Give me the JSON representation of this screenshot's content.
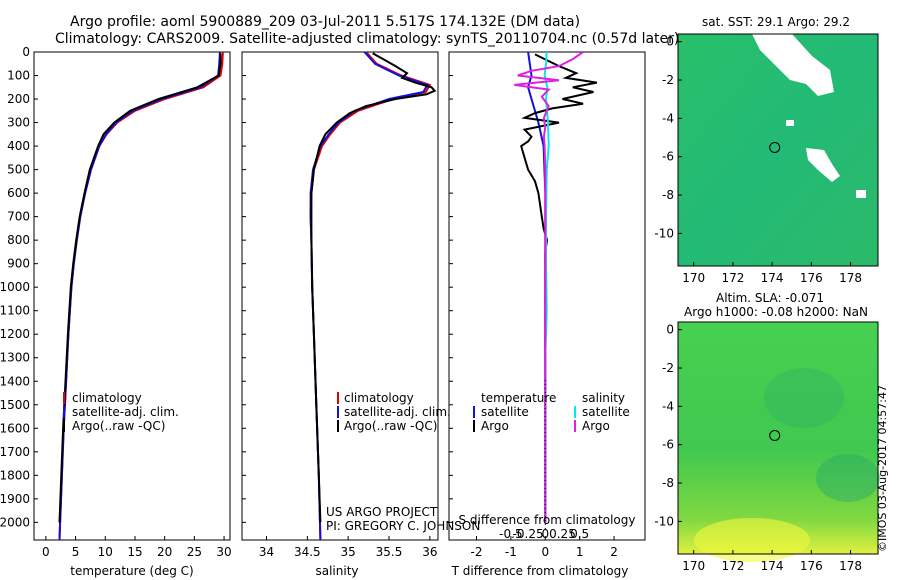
{
  "header": {
    "line1": "Argo profile: aoml 5900889_209 03-Jul-2011 5.517S 174.132E (DM data)",
    "line2": "Climatology: CARS2009. Satellite-adjusted climatology: synTS_20110704.nc (0.57d later)"
  },
  "colors": {
    "climatology": "#e00000",
    "satellite": "#1010e0",
    "argo": "#000000",
    "sal_satellite": "#00e8f0",
    "sal_argo": "#e020e0"
  },
  "stamp": "©IMOS 03-Aug-2017 04:57:47",
  "project": {
    "line1": "US ARGO PROJECT",
    "line2": "PI: GREGORY C. JOHNSON"
  },
  "chart_data": [
    {
      "id": "temperature",
      "type": "line",
      "xlabel": "temperature (deg C)",
      "ylabel": "",
      "xlim": [
        -2,
        31
      ],
      "ylim": [
        2075,
        0
      ],
      "xticks": [
        0,
        5,
        10,
        15,
        20,
        25,
        30
      ],
      "yticks": [
        0,
        100,
        200,
        300,
        400,
        500,
        600,
        700,
        800,
        900,
        1000,
        1100,
        1200,
        1300,
        1400,
        1500,
        1600,
        1700,
        1800,
        1900,
        2000
      ],
      "legend": [
        "climatology",
        "satellite-adj. clim.",
        "Argo(..raw -QC)"
      ],
      "series": [
        {
          "name": "climatology",
          "depth": [
            0,
            50,
            100,
            150,
            200,
            250,
            300,
            350,
            400,
            500,
            600,
            700,
            800,
            900,
            1000,
            1200,
            1400,
            1600,
            1800,
            2000,
            2075
          ],
          "values": [
            29.8,
            29.7,
            29.4,
            26.5,
            20.0,
            15.0,
            12.0,
            10.2,
            9.0,
            7.6,
            6.6,
            5.8,
            5.2,
            4.7,
            4.3,
            3.8,
            3.4,
            3.0,
            2.7,
            2.4,
            2.3
          ]
        },
        {
          "name": "satellite-adj. clim.",
          "depth": [
            0,
            50,
            100,
            150,
            200,
            250,
            300,
            350,
            400,
            500,
            600,
            700,
            800,
            900,
            1000,
            1200,
            1400,
            1600,
            1800,
            2000,
            2075
          ],
          "values": [
            29.3,
            29.2,
            29.0,
            26.0,
            19.5,
            14.6,
            11.8,
            10.1,
            9.0,
            7.6,
            6.6,
            5.8,
            5.2,
            4.7,
            4.3,
            3.8,
            3.4,
            3.0,
            2.7,
            2.4,
            2.3
          ]
        },
        {
          "name": "Argo(..raw -QC)",
          "depth": [
            5,
            50,
            100,
            150,
            200,
            250,
            300,
            350,
            400,
            500,
            600,
            700,
            800,
            900,
            1000,
            1200,
            1400,
            1600,
            1800,
            2000
          ],
          "values": [
            29.4,
            29.4,
            29.1,
            25.5,
            19.0,
            14.2,
            11.5,
            9.7,
            8.8,
            7.4,
            6.5,
            5.7,
            5.1,
            4.6,
            4.2,
            3.7,
            3.3,
            2.9,
            2.6,
            2.3
          ]
        }
      ]
    },
    {
      "id": "salinity",
      "type": "line",
      "xlabel": "salinity",
      "xlim": [
        33.7,
        36.1
      ],
      "ylim": [
        2075,
        0
      ],
      "xticks": [
        34,
        34.5,
        35,
        35.5,
        36
      ],
      "legend": [
        "climatology",
        "satellite-adj. clim.",
        "Argo(..raw -QC)"
      ],
      "series": [
        {
          "name": "climatology",
          "depth": [
            0,
            50,
            100,
            140,
            170,
            200,
            250,
            300,
            350,
            400,
            500,
            600,
            700,
            800,
            1000,
            1200,
            1500,
            1800,
            2075
          ],
          "values": [
            35.22,
            35.35,
            35.65,
            36.0,
            35.95,
            35.55,
            35.12,
            34.9,
            34.78,
            34.68,
            34.58,
            34.55,
            34.54,
            34.55,
            34.56,
            34.58,
            34.61,
            34.64,
            34.66
          ]
        },
        {
          "name": "satellite-adj. clim.",
          "depth": [
            0,
            50,
            100,
            140,
            170,
            200,
            250,
            300,
            350,
            400,
            500,
            600,
            700,
            800,
            1000,
            1200,
            1500,
            1800,
            2075
          ],
          "values": [
            35.2,
            35.33,
            35.62,
            35.97,
            35.92,
            35.5,
            35.08,
            34.88,
            34.76,
            34.66,
            34.57,
            34.54,
            34.54,
            34.55,
            34.56,
            34.58,
            34.61,
            34.64,
            34.66
          ]
        },
        {
          "name": "Argo(..raw -QC)",
          "depth": [
            5,
            60,
            90,
            110,
            130,
            150,
            165,
            180,
            200,
            230,
            260,
            300,
            350,
            400,
            500,
            600,
            800,
            1000,
            1200,
            1500,
            1800,
            2000
          ],
          "values": [
            35.3,
            35.58,
            35.72,
            35.66,
            35.82,
            36.02,
            36.06,
            35.96,
            35.58,
            35.22,
            35.02,
            34.86,
            34.72,
            34.65,
            34.58,
            34.55,
            34.55,
            34.56,
            34.58,
            34.61,
            34.64,
            34.66
          ]
        }
      ]
    },
    {
      "id": "difference",
      "type": "line",
      "xlabel": "T difference from climatology",
      "xlabel2": "S difference from climatology",
      "xlim": [
        -2.8,
        2.9
      ],
      "ylim": [
        2075,
        0
      ],
      "xticks": [
        -2,
        -1,
        0,
        1,
        2
      ],
      "sticks": [
        -0.5,
        -0.25,
        0,
        0.25,
        0.5
      ],
      "stick_labels": [
        "-0.5",
        "-0.25",
        "0",
        "0.25",
        "0.5"
      ],
      "legend_headers": [
        "temperature",
        "salinity"
      ],
      "legend": [
        "satellite",
        "Argo",
        "satellite",
        "Argo"
      ],
      "series": [
        {
          "name": "T satellite",
          "depth": [
            0,
            100,
            150,
            200,
            300,
            400,
            600,
            800,
            1000,
            1500,
            2000
          ],
          "values": [
            -0.5,
            -0.4,
            -0.5,
            -0.4,
            -0.2,
            -0.05,
            0,
            0,
            0,
            0,
            0
          ]
        },
        {
          "name": "T Argo",
          "depth": [
            10,
            60,
            90,
            110,
            130,
            150,
            170,
            200,
            220,
            240,
            260,
            280,
            300,
            330,
            360,
            380,
            400,
            450,
            500,
            550,
            600,
            650,
            700,
            750,
            800,
            850,
            900,
            1000,
            1200,
            1500,
            1800,
            2000
          ],
          "values": [
            -0.3,
            0.4,
            0.9,
            0.6,
            1.5,
            0.8,
            1.4,
            0.5,
            1.1,
            0.2,
            -0.3,
            -0.6,
            0.4,
            -0.6,
            -0.4,
            -0.5,
            -0.7,
            -0.6,
            -0.5,
            -0.3,
            -0.2,
            -0.15,
            -0.1,
            -0.05,
            0.05,
            0,
            0,
            0,
            0,
            0,
            0,
            0
          ]
        },
        {
          "name": "S satellite",
          "depth": [
            0,
            50,
            100,
            150,
            200,
            300,
            400,
            500,
            700,
            900,
            1100,
            1300,
            1500,
            2000
          ],
          "values": [
            0.02,
            0.01,
            -0.01,
            0.03,
            0.01,
            0.04,
            0.05,
            0.02,
            0.01,
            0.01,
            0.02,
            0,
            0,
            0
          ]
        },
        {
          "name": "S Argo",
          "depth": [
            0,
            30,
            60,
            80,
            100,
            120,
            140,
            160,
            190,
            230,
            280,
            320,
            360,
            400,
            500,
            1000,
            2000
          ],
          "values": [
            0.55,
            0.4,
            0.2,
            -0.2,
            -0.4,
            0.2,
            -0.45,
            0.05,
            -0.05,
            0.05,
            -0.02,
            0,
            -0.02,
            -0.01,
            0,
            0,
            0
          ]
        }
      ]
    },
    {
      "id": "sst-map",
      "type": "heatmap",
      "title": "sat. SST: 29.1  Argo: 29.2",
      "xlim": [
        169.2,
        179.4
      ],
      "ylim": [
        -11.7,
        0.4
      ],
      "xticks": [
        170,
        172,
        174,
        176,
        178
      ],
      "yticks": [
        0,
        -2,
        -4,
        -6,
        -8,
        -10
      ],
      "argo_position": {
        "lon": 174.132,
        "lat": -5.517
      }
    },
    {
      "id": "sla-map",
      "type": "heatmap",
      "title": "Altim. SLA: -0.071",
      "subtitle": "Argo h1000: -0.08 h2000: NaN",
      "xlim": [
        169.2,
        179.4
      ],
      "ylim": [
        -11.7,
        0.4
      ],
      "xticks": [
        170,
        172,
        174,
        176,
        178
      ],
      "yticks": [
        0,
        -2,
        -4,
        -6,
        -8,
        -10
      ],
      "argo_position": {
        "lon": 174.132,
        "lat": -5.517
      }
    }
  ]
}
